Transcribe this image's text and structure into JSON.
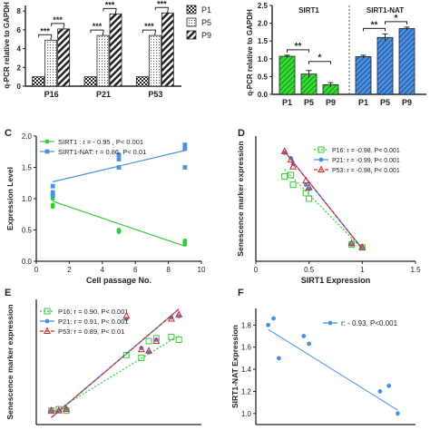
{
  "colors": {
    "green": "#33cc33",
    "blue": "#4a90e2",
    "red": "#d62728",
    "dark": "#1a1a1a",
    "gray": "#888888"
  },
  "chart_data": [
    {
      "panel": "",
      "type": "bar",
      "categories": [
        "P16",
        "P21",
        "P53"
      ],
      "series": [
        {
          "name": "P1",
          "values": [
            1.0,
            1.0,
            1.0
          ]
        },
        {
          "name": "P5",
          "values": [
            4.9,
            5.4,
            5.4
          ]
        },
        {
          "name": "P9",
          "values": [
            6.1,
            7.7,
            7.8
          ]
        }
      ],
      "ylabel": "q-PCR relative to GAPDH",
      "yticks": [
        "0",
        "2",
        "4",
        "6",
        "8"
      ],
      "ylim": [
        0,
        8.6
      ],
      "significance": [
        "***",
        "***",
        "***",
        "***",
        "***",
        "***"
      ],
      "legend": "right"
    },
    {
      "panel": "",
      "type": "bar",
      "groups": [
        {
          "name": "SIRT1",
          "categories": [
            "P1",
            "P5",
            "P9"
          ],
          "values": [
            1.07,
            0.57,
            0.27
          ],
          "errors": [
            0.03,
            0.1,
            0.06
          ],
          "significance": [
            "**",
            "*"
          ]
        },
        {
          "name": "SIRT1-NAT",
          "categories": [
            "P1",
            "P5",
            "P9"
          ],
          "values": [
            1.06,
            1.6,
            1.85
          ],
          "errors": [
            0.04,
            0.1,
            0.04
          ],
          "significance": [
            "**",
            "*"
          ]
        }
      ],
      "ylabel": "q-PCR relative to GAPDH",
      "yticks": [
        "0.0",
        "0.5",
        "1.0",
        "1.5",
        "2.0",
        "2.5"
      ],
      "ylim": [
        0,
        2.5
      ]
    },
    {
      "panel": "C",
      "type": "scatter",
      "xlabel": "Cell passage No.",
      "ylabel": "Expression Level",
      "xticks": [
        "0",
        "2",
        "4",
        "6",
        "8",
        "10"
      ],
      "yticks": [
        "0.0",
        "0.5",
        "1.0",
        "1.5",
        "2.0"
      ],
      "xlim": [
        0,
        10
      ],
      "ylim": [
        0,
        2.0
      ],
      "series": [
        {
          "name": "SIRT1 : r = - 0.95 , P< 0.001",
          "x": [
            1,
            1,
            1,
            5,
            5,
            9,
            9,
            9
          ],
          "y": [
            1.0,
            0.9,
            0.87,
            0.5,
            0.47,
            0.33,
            0.3,
            0.27
          ],
          "fit": [
            [
              1,
              0.96
            ],
            [
              9,
              0.24
            ]
          ]
        },
        {
          "name": "SIRT1-NAT: r = 0.86, P< 0.01",
          "x": [
            1,
            1,
            1,
            5,
            5,
            5,
            9,
            9,
            9
          ],
          "y": [
            1.2,
            1.1,
            1.05,
            1.7,
            1.63,
            1.5,
            1.86,
            1.8,
            1.5
          ],
          "fit": [
            [
              1,
              1.27
            ],
            [
              9,
              1.77
            ]
          ]
        }
      ],
      "legend": "top-left"
    },
    {
      "panel": "D",
      "type": "scatter",
      "xlabel": "SIRT1 Expression",
      "ylabel": "Senescence marker expression",
      "xticks": [
        "0",
        "0.5",
        "1",
        "1.5"
      ],
      "xlim": [
        0,
        1.5
      ],
      "ylim": [
        0,
        9
      ],
      "series": [
        {
          "name": "P16: r = -0.98, P< 0.001",
          "x": [
            0.27,
            0.33,
            0.35,
            0.47,
            0.5,
            0.9,
            1.0
          ],
          "y": [
            6.1,
            6.2,
            5.5,
            4.9,
            4.5,
            1.2,
            1.0
          ],
          "fit": [
            [
              0.27,
              6.6
            ],
            [
              1.0,
              0.9
            ]
          ]
        },
        {
          "name": "P21: r = -0.99, P< 0.001",
          "x": [
            0.27,
            0.33,
            0.35,
            0.47,
            0.5,
            0.9,
            1.0
          ],
          "y": [
            7.8,
            7.4,
            7.0,
            5.5,
            5.2,
            1.2,
            1.0
          ],
          "fit": [
            [
              0.27,
              7.9
            ],
            [
              1.0,
              0.9
            ]
          ]
        },
        {
          "name": "P53: r = -0.98, P< 0.001",
          "x": [
            0.27,
            0.33,
            0.35,
            0.47,
            0.5,
            0.9,
            1.0
          ],
          "y": [
            7.9,
            7.3,
            6.8,
            5.8,
            5.3,
            1.3,
            1.0
          ],
          "fit": [
            [
              0.27,
              7.9
            ],
            [
              1.0,
              0.9
            ]
          ]
        }
      ],
      "legend": "top-right"
    },
    {
      "panel": "E",
      "type": "scatter",
      "ylabel": "Senescence marker expression",
      "xlim": [
        0.9,
        2.0
      ],
      "ylim": [
        0,
        9
      ],
      "series": [
        {
          "name": "P16: r = 0.90, P< 0.001",
          "x": [
            1.0,
            1.05,
            1.1,
            1.5,
            1.6,
            1.65,
            1.7,
            1.8,
            1.85
          ],
          "y": [
            1.0,
            1.1,
            1.0,
            5.0,
            4.8,
            6.0,
            6.2,
            6.3,
            6.1
          ],
          "fit": [
            [
              1.0,
              0.8
            ],
            [
              1.85,
              6.4
            ]
          ]
        },
        {
          "name": "P21: r = 0.91, P< 0.001",
          "x": [
            1.0,
            1.05,
            1.1,
            1.5,
            1.6,
            1.65,
            1.7,
            1.8,
            1.85
          ],
          "y": [
            1.0,
            1.0,
            1.1,
            7.6,
            5.5,
            5.2,
            6.1,
            7.7,
            7.8
          ],
          "fit": [
            [
              1.0,
              0.5
            ],
            [
              1.85,
              8.3
            ]
          ]
        },
        {
          "name": "P53: r = 0.89, P< 0.01",
          "x": [
            1.0,
            1.05,
            1.1,
            1.5,
            1.6,
            1.65,
            1.7,
            1.8,
            1.85
          ],
          "y": [
            1.0,
            1.0,
            1.1,
            7.8,
            5.4,
            5.3,
            6.0,
            7.6,
            7.9
          ],
          "fit": [
            [
              1.0,
              0.5
            ],
            [
              1.85,
              8.3
            ]
          ]
        }
      ],
      "legend": "top-left"
    },
    {
      "panel": "F",
      "type": "scatter",
      "ylabel": "SIRT1-NAT Expression",
      "yticks": [
        "1.0",
        "1.2",
        "1.4",
        "1.6",
        "1.8"
      ],
      "xlim": [
        0.2,
        1.1
      ],
      "ylim": [
        0.9,
        1.95
      ],
      "series": [
        {
          "name": "r: - 0.93, P<0.001",
          "x": [
            0.27,
            0.3,
            0.33,
            0.47,
            0.5,
            0.9,
            0.95,
            1.0
          ],
          "y": [
            1.8,
            1.86,
            1.5,
            1.7,
            1.63,
            1.2,
            1.25,
            1.0
          ],
          "fit": [
            [
              0.27,
              1.76
            ],
            [
              1.0,
              1.03
            ]
          ]
        }
      ],
      "legend": "top-right"
    }
  ]
}
